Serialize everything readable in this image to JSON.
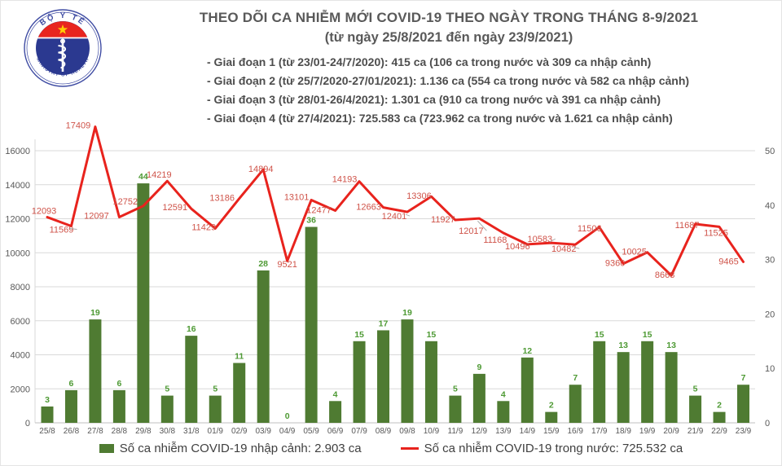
{
  "header": {
    "title": "THEO DÕI CA NHIỄM MỚI COVID-19 THEO NGÀY TRONG THÁNG 8-9/2021",
    "subtitle": "(từ ngày 25/8/2021 đến ngày 23/9/2021)",
    "notes": [
      "- Giai đoạn 1 (từ 23/01-24/7/2020): 415 ca (106 ca trong nước và 309 ca nhập cảnh)",
      "- Giai đoạn 2 (từ 25/7/2020-27/01/2021): 1.136 ca (554 ca trong nước và 582 ca nhập cảnh)",
      "- Giai đoạn 3 (từ 28/01-26/4/2021): 1.301 ca (910 ca trong nước và 391 ca nhập cảnh)",
      "- Giai đoạn 4 (từ 27/4/2021): 725.583 ca (723.962 ca trong nước và 1.621 ca nhập cảnh)"
    ],
    "logo": {
      "top_text": "BỘ Y TẾ",
      "bottom_text": "MINISTRY OF HEALTH"
    }
  },
  "chart_data": {
    "type": "bar",
    "subtype": "combo bar+line, dual axis",
    "categories": [
      "25/8",
      "26/8",
      "27/8",
      "28/8",
      "29/8",
      "30/8",
      "31/8",
      "01/9",
      "02/9",
      "03/9",
      "04/9",
      "05/9",
      "06/9",
      "07/9",
      "08/9",
      "09/8",
      "10/9",
      "11/9",
      "12/9",
      "13/9",
      "14/9",
      "15/9",
      "16/9",
      "17/9",
      "18/9",
      "19/9",
      "20/9",
      "21/9",
      "22/9",
      "23/9"
    ],
    "series": [
      {
        "name": "Số ca nhiễm COVID-19 nhập cảnh",
        "type": "bar",
        "axis": "right",
        "color": "#4f7b32",
        "label_color": "#4e9a34",
        "values": [
          3,
          6,
          19,
          6,
          44,
          5,
          16,
          5,
          11,
          28,
          0,
          36,
          4,
          15,
          17,
          19,
          15,
          5,
          9,
          4,
          12,
          2,
          7,
          15,
          13,
          15,
          13,
          5,
          2,
          7
        ]
      },
      {
        "name": "Số ca nhiễm COVID-19 trong nước",
        "type": "line",
        "axis": "left",
        "color": "#e8231d",
        "label_color": "#cf5349",
        "values": [
          12093,
          11569,
          17409,
          12097,
          12752,
          14219,
          12591,
          11429,
          13186,
          14894,
          9521,
          13101,
          12477,
          14193,
          12663,
          12401,
          13306,
          11927,
          12017,
          11168,
          10496,
          10583,
          10482,
          11506,
          9360,
          10025,
          8668,
          11687,
          11525,
          9465
        ]
      }
    ],
    "left_axis": {
      "min": 0,
      "max": 16000,
      "step": 2000
    },
    "right_axis": {
      "min": 0,
      "max": 50,
      "step": 10
    },
    "grid": true,
    "legend_position": "bottom",
    "line_label_layout": [
      [
        "a",
        -4,
        0,
        0
      ],
      [
        "b",
        -12,
        -6,
        1
      ],
      [
        "a",
        -21,
        6,
        0
      ],
      [
        "b",
        -28,
        -12,
        0
      ],
      [
        "a",
        -22,
        2,
        0
      ],
      [
        "a",
        -10,
        0,
        0
      ],
      [
        "b",
        -20,
        -12,
        0
      ],
      [
        "b",
        -14,
        -12,
        0
      ],
      [
        "a",
        -21,
        7,
        0
      ],
      [
        "a",
        -3,
        7,
        0
      ],
      [
        "b",
        0,
        -6,
        0
      ],
      [
        "a",
        -18,
        4,
        0
      ],
      [
        "b",
        -20,
        -11,
        0
      ],
      [
        "a",
        -18,
        5,
        0
      ],
      [
        "b",
        -18,
        -11,
        0
      ],
      [
        "b",
        -16,
        -5,
        1
      ],
      [
        "a",
        -15,
        7,
        0
      ],
      [
        "b",
        -15,
        -11,
        0
      ],
      [
        "b",
        -10,
        5,
        1
      ],
      [
        "b",
        -10,
        -2,
        0
      ],
      [
        "b",
        -12,
        -8,
        0
      ],
      [
        "a",
        -14,
        3,
        1
      ],
      [
        "b",
        -14,
        -5,
        1
      ],
      [
        "a",
        -12,
        9,
        0
      ],
      [
        "b",
        -10,
        -11,
        0
      ],
      [
        "a",
        -16,
        7,
        0
      ],
      [
        "b",
        -8,
        -11,
        0
      ],
      [
        "a",
        -10,
        9,
        0
      ],
      [
        "b",
        -4,
        -3,
        0
      ],
      [
        "b",
        -18,
        -11,
        0
      ]
    ]
  },
  "legend": {
    "bar": "Số ca nhiễm COVID-19 nhập cảnh: 2.903 ca",
    "line": "Số ca nhiễm COVID-19 trong nước: 725.532 ca"
  }
}
